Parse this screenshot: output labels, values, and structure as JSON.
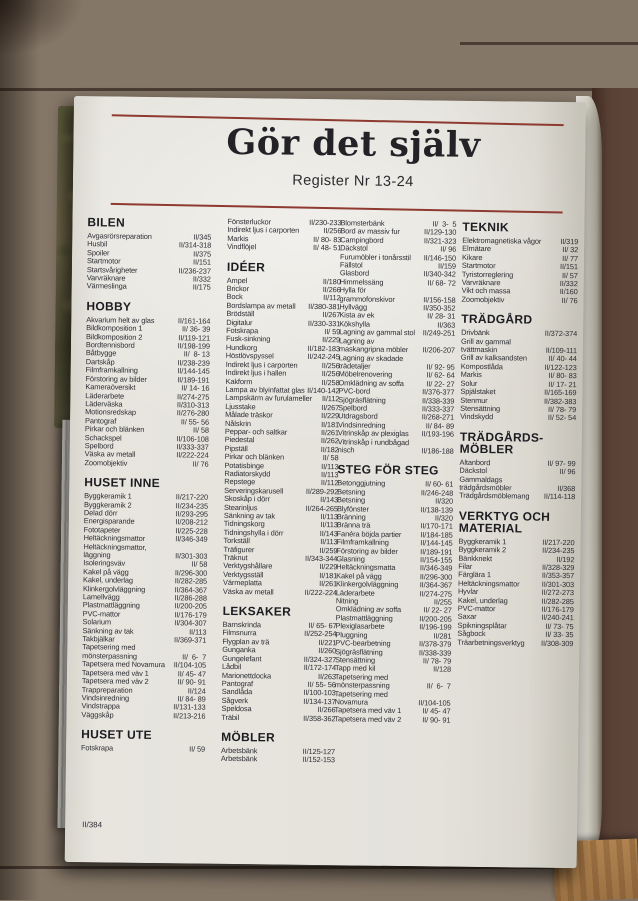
{
  "page": {
    "title": "Gör det själv",
    "subtitle": "Register Nr 13-24",
    "footer_page_ref": "II/384",
    "columns": [
      {
        "blocks": [
          {
            "heading": "BILEN",
            "entries": [
              [
                "Avgasrörsreparation",
                "II/345"
              ],
              [
                "Husbil",
                "II/314-318"
              ],
              [
                "Spoiler",
                "II/375"
              ],
              [
                "Startmotor",
                "II/151"
              ],
              [
                "Startsvårigheter",
                "II/236-237"
              ],
              [
                "Varvräknare",
                "II/332"
              ],
              [
                "Värmeslinga",
                "II/175"
              ]
            ]
          },
          {
            "heading": "HOBBY",
            "entries": [
              [
                "Akvarium helt av glas",
                "II/161-164"
              ],
              [
                "Bildkomposition 1",
                "II/ 36- 39"
              ],
              [
                "Bildkomposition 2",
                "II/119-121"
              ],
              [
                "Bordtennisbord",
                "II/198-199"
              ],
              [
                "Båtbygge",
                "II/  8- 13"
              ],
              [
                "Dartskåp",
                "II/238-239"
              ],
              [
                "Filmframkallning",
                "II/144-145"
              ],
              [
                "Förstoring av bilder",
                "II/189-191"
              ],
              [
                "Kameraöversikt",
                "II/ 14- 16"
              ],
              [
                "Läderarbete",
                "II/274-275"
              ],
              [
                "Läderväska",
                "II/310-313"
              ],
              [
                "Motionsredskap",
                "II/276-280"
              ],
              [
                "Pantograf",
                "II/ 55- 56"
              ],
              [
                "Pirkar och blänken",
                "II/ 58"
              ],
              [
                "Schackspel",
                "II/106-108"
              ],
              [
                "Spelbord",
                "II/333-337"
              ],
              [
                "Väska av metall",
                "II/222-224"
              ],
              [
                "Zoomobjektiv",
                "II/ 76"
              ]
            ]
          },
          {
            "heading": "HUSET INNE",
            "entries": [
              [
                "Byggkeramik 1",
                "II/217-220"
              ],
              [
                "Byggkeramik 2",
                "II/234-235"
              ],
              [
                "Delad dörr",
                "II/293-295"
              ],
              [
                "Energisparande",
                "II/208-212"
              ],
              [
                "Fototapeter",
                "II/225-228"
              ],
              [
                "Heltäckningsmattor",
                "II/346-349"
              ],
              [
                "Heltäckningsmattor, läggning",
                "II/301-303"
              ],
              [
                "Isoleringsväv",
                "II/ 58"
              ],
              [
                "Kakel på vägg",
                "II/296-300"
              ],
              [
                "Kakel, underlag",
                "II/282-285"
              ],
              [
                "Klinkergolvläggning",
                "II/364-367"
              ],
              [
                "Lamellvägg",
                "II/286-288"
              ],
              [
                "Plastmattläggning",
                "II/200-205"
              ],
              [
                "PVC-mattor",
                "II/176-179"
              ],
              [
                "Solarium",
                "II/304-307"
              ],
              [
                "Sänkning av tak",
                "II/113"
              ],
              [
                "Takbjälkar",
                "II/369-371"
              ],
              [
                "Tapetsering med mönsterpassning",
                "II/  6-  7"
              ],
              [
                "Tapetsera med Novamura",
                "II/104-105"
              ],
              [
                "Tapetsera med väv 1",
                "II/ 45- 47"
              ],
              [
                "Tapetsera med väv 2",
                "II/ 90- 91"
              ],
              [
                "Trappreparation",
                "II/124"
              ],
              [
                "Vindsinredning",
                "II/ 84- 89"
              ],
              [
                "Vindstrappa",
                "II/131-133"
              ],
              [
                "Väggskåp",
                "II/213-216"
              ]
            ]
          },
          {
            "heading": "HUSET UTE",
            "entries": [
              [
                "Fotskrapa",
                "II/ 59"
              ]
            ]
          }
        ]
      },
      {
        "blocks": [
          {
            "heading": "",
            "entries": [
              [
                "Fönsterluckor",
                "II/230-233"
              ],
              [
                "Indirekt ljus i carporten",
                "II/256"
              ],
              [
                "Markis",
                "II/ 80- 83"
              ],
              [
                "Vindflöjel",
                "II/ 48- 51"
              ]
            ]
          },
          {
            "heading": "IDÉER",
            "entries": [
              [
                "Ampel",
                "II/180"
              ],
              [
                "Brickor",
                "II/266"
              ],
              [
                "Bock",
                "II/112"
              ],
              [
                "Bordslampa av metall",
                "II/380-381"
              ],
              [
                "Brödställ",
                "II/267"
              ],
              [
                "Digitalur",
                "II/330-331"
              ],
              [
                "Fotskrapa",
                "II/ 59"
              ],
              [
                "Fusk-sinkning",
                "II/229"
              ],
              [
                "Hundkorg",
                "II/182-183"
              ],
              [
                "Höstlövspyssel",
                "II/242-245"
              ],
              [
                "Indirekt ljus i carporten",
                "II/256"
              ],
              [
                "Indirekt ljus i hallen",
                "II/256"
              ],
              [
                "Kakform",
                "II/258"
              ],
              [
                "Lampa av blyinfattat glas",
                "II/140-142"
              ],
              [
                "Lampskärm av furulameller",
                "II/112"
              ],
              [
                "Ljusstake",
                "II/267"
              ],
              [
                "Målade träskor",
                "II/229"
              ],
              [
                "Nålskrin",
                "II/181"
              ],
              [
                "Peppar- och saltkar",
                "II/261"
              ],
              [
                "Piedestal",
                "II/262"
              ],
              [
                "Pipställ",
                "II/182"
              ],
              [
                "Pirkar och blänken",
                "II/ 58"
              ],
              [
                "Potatisbinge",
                "II/113"
              ],
              [
                "Radiatorskydd",
                "II/113"
              ],
              [
                "Repstege",
                "II/112"
              ],
              [
                "Serveringskarusell",
                "II/289-292"
              ],
              [
                "Skoskåp i dörr",
                "II/143"
              ],
              [
                "Stearinljus",
                "II/264-265"
              ],
              [
                "Sänkning av tak",
                "II/113"
              ],
              [
                "Tidningskorg",
                "II/113"
              ],
              [
                "Tidningshylla i dörr",
                "II/143"
              ],
              [
                "Torkställ",
                "II/113"
              ],
              [
                "Träfigurer",
                "II/259"
              ],
              [
                "Träknut",
                "II/343-344"
              ],
              [
                "Verktygshållare",
                "II/229"
              ],
              [
                "Verktygsställ",
                "II/181"
              ],
              [
                "Värmeplatta",
                "II/261"
              ],
              [
                "Väska av metall",
                "II/222-224"
              ]
            ]
          },
          {
            "heading": "LEKSAKER",
            "entries": [
              [
                "Barnskrinda",
                "II/ 65- 67"
              ],
              [
                "Filmsnurra",
                "II/252-254"
              ],
              [
                "Flygplan av trä",
                "II/221"
              ],
              [
                "Gunganka",
                "II/260"
              ],
              [
                "Gungelefant",
                "II/324-327"
              ],
              [
                "Lådbil",
                "II/172-174"
              ],
              [
                "Marionettdocka",
                "II/263"
              ],
              [
                "Pantograf",
                "II/ 55- 56"
              ],
              [
                "Sandlåda",
                "II/100-103"
              ],
              [
                "Sågverk",
                "II/134-137"
              ],
              [
                "Speldosa",
                "II/266"
              ],
              [
                "Träbil",
                "II/358-362"
              ]
            ]
          },
          {
            "heading": "MÖBLER",
            "entries": [
              [
                "Arbetsbänk",
                "II/125-127"
              ],
              [
                "Arbetsbänk",
                "II/152-153"
              ]
            ]
          }
        ]
      },
      {
        "blocks": [
          {
            "heading": "",
            "entries": [
              [
                "Blomsterbänk",
                "II/  3-  5"
              ],
              [
                "Bord av massiv fur",
                "II/129-130"
              ],
              [
                "Campingbord",
                "II/321-323"
              ],
              [
                "Däckstol",
                "II/ 96"
              ],
              [
                "Furumöbler i tonårsstil",
                "II/146-150"
              ],
              [
                "Fällstol",
                "II/159"
              ],
              [
                "Glasbord",
                "II/340-342"
              ],
              [
                "Himmelssäng",
                "II/ 68- 72"
              ],
              [
                "Hylla för grammofonskivor",
                "II/156-158"
              ],
              [
                "Hyllvägg",
                "II/350-352"
              ],
              [
                "Kista av ek",
                "II/ 28- 31"
              ],
              [
                "Kökshylla",
                "II/363"
              ],
              [
                "Lagning av gammal stol",
                "II/249-251"
              ],
              [
                "Lagning av maskangripna möbler",
                "II/206-207"
              ],
              [
                "Lagning av skadade trädetaljer",
                "II/ 92- 95"
              ],
              [
                "Möbelrenovering",
                "II/ 62- 64"
              ],
              [
                "Omklädning av soffa",
                "II/ 22- 27"
              ],
              [
                "PVC-bord",
                "II/376-377"
              ],
              [
                "Sjögräsflätning",
                "II/338-339"
              ],
              [
                "Spelbord",
                "II/333-337"
              ],
              [
                "Utdragsbord",
                "II/268-271"
              ],
              [
                "Vindsinredning",
                "II/ 84- 89"
              ],
              [
                "Vitrinskåp av plexiglas",
                "II/193-196"
              ],
              [
                "Vitrinskåp i rundbågad nisch",
                "II/186-188"
              ]
            ]
          },
          {
            "heading": "STEG FÖR STEG",
            "entries": [
              [
                "Betonggjutning",
                "II/ 60- 61"
              ],
              [
                "Betsning",
                "II/246-248"
              ],
              [
                "Betsning",
                "II/320"
              ],
              [
                "Blyfönster",
                "II/138-139"
              ],
              [
                "Bränning",
                "II/320"
              ],
              [
                "Bränna trä",
                "II/170-171"
              ],
              [
                "Fanéra böjda partier",
                "II/184-185"
              ],
              [
                "Filmframkallning",
                "II/144-145"
              ],
              [
                "Förstoring av bilder",
                "II/189-191"
              ],
              [
                "Glasning",
                "II/154-155"
              ],
              [
                "Heltäckningsmatta",
                "II/346-349"
              ],
              [
                "Kakel på vägg",
                "II/296-300"
              ],
              [
                "Klinkergolvläggning",
                "II/364-367"
              ],
              [
                "Läderarbete",
                "II/274-275"
              ],
              [
                "Nitning",
                "II/255"
              ],
              [
                "Omklädning av soffa",
                "II/ 22- 27"
              ],
              [
                "Plastmattläggning",
                "II/200-205"
              ],
              [
                "Plexiglasarbete",
                "II/196-199"
              ],
              [
                "Pluggning",
                "II/281"
              ],
              [
                "PVC-bearbetning",
                "II/378-379"
              ],
              [
                "Sjögräsflätning",
                "II/338-339"
              ],
              [
                "Stensättning",
                "II/ 78- 79"
              ],
              [
                "Tapp med kil",
                "II/128"
              ],
              [
                "Tapetsering med mönsterpassning",
                "II/  6-  7"
              ],
              [
                "Tapetsering med Novamura",
                "II/104-105"
              ],
              [
                "Tapetsera med väv 1",
                "II/ 45- 47"
              ],
              [
                "Tapetsera med väv 2",
                "II/ 90- 91"
              ]
            ]
          }
        ]
      },
      {
        "blocks": [
          {
            "heading": "TEKNIK",
            "entries": [
              [
                "Elektromagnetiska vågor",
                "II/319"
              ],
              [
                "Elmätare",
                "II/ 32"
              ],
              [
                "Kikare",
                "II/ 77"
              ],
              [
                "Startmotor",
                "II/151"
              ],
              [
                "Tyristorreglering",
                "II/ 57"
              ],
              [
                "Varvräknare",
                "II/332"
              ],
              [
                "Vikt och massa",
                "II/160"
              ],
              [
                "Zoomobjektiv",
                "II/ 76"
              ]
            ]
          },
          {
            "heading": "TRÄDGÅRD",
            "entries": [
              [
                "Drivbänk",
                "II/372-374"
              ],
              [
                "Grill av gammal tvättmaskin",
                "II/109-111"
              ],
              [
                "Grill av kalksandsten",
                "II/ 40- 44"
              ],
              [
                "Kompostlåda",
                "II/122-123"
              ],
              [
                "Markis",
                "II/ 80- 83"
              ],
              [
                "Solur",
                "II/ 17- 21"
              ],
              [
                "Spjälstaket",
                "II/165-169"
              ],
              [
                "Stenmur",
                "II/382-383"
              ],
              [
                "Stensättning",
                "II/ 78- 79"
              ],
              [
                "Vindskydd",
                "II/ 52- 54"
              ]
            ]
          },
          {
            "heading": "TRÄDGÅRDS-MÖBLER",
            "entries": [
              [
                "Altanbord",
                "II/ 97- 99"
              ],
              [
                "Däckstol",
                "II/ 96"
              ],
              [
                "Gammaldags trädgårdsmöbler",
                "II/368"
              ],
              [
                "Trädgårdsmöblemang",
                "II/114-118"
              ]
            ]
          },
          {
            "heading": "VERKTYG OCH MATERIAL",
            "entries": [
              [
                "Byggkeramik 1",
                "II/217-220"
              ],
              [
                "Byggkeramik 2",
                "II/234-235"
              ],
              [
                "Bänkknekt",
                "II/192"
              ],
              [
                "Filar",
                "II/328-329"
              ],
              [
                "Färglära 1",
                "II/353-357"
              ],
              [
                "Heltäckningsmattor",
                "II/301-303"
              ],
              [
                "Hyvlar",
                "II/272-273"
              ],
              [
                "Kakel, underlag",
                "II/282-285"
              ],
              [
                "PVC-mattor",
                "II/176-179"
              ],
              [
                "Saxar",
                "II/240-241"
              ],
              [
                "Spikningsplåtar",
                "II/ 73- 75"
              ],
              [
                "Sågbock",
                "II/ 33- 35"
              ],
              [
                "Träarbetningsverktyg",
                "II/308-309"
              ]
            ]
          }
        ]
      }
    ]
  }
}
